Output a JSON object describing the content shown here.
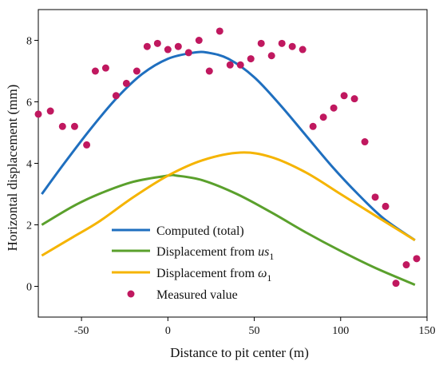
{
  "chart_data": {
    "type": "line",
    "xlabel": "Distance to pit center (m)",
    "ylabel": "Horizontal displacement (mm)",
    "xlim": [
      -75,
      150
    ],
    "ylim": [
      -1,
      9
    ],
    "xticks": [
      -50,
      0,
      50,
      100,
      150
    ],
    "yticks": [
      0,
      2,
      4,
      6,
      8
    ],
    "legend_position": "lower-left",
    "series": [
      {
        "name": "Computed (total)",
        "type": "line",
        "color": "#1f6fbf",
        "x": [
          -73,
          -60,
          -45,
          -30,
          -15,
          0,
          15,
          23,
          35,
          50,
          65,
          80,
          95,
          110,
          125,
          143
        ],
        "y": [
          3.0,
          4.0,
          5.1,
          6.1,
          6.9,
          7.4,
          7.6,
          7.6,
          7.4,
          6.8,
          5.9,
          4.9,
          3.9,
          3.0,
          2.2,
          1.5
        ]
      },
      {
        "name_main": "Displacement from ",
        "name_italic": "us",
        "name_sub": "1",
        "type": "line",
        "color": "#5aa02c",
        "x": [
          -73,
          -55,
          -40,
          -20,
          0,
          5,
          20,
          40,
          60,
          80,
          100,
          120,
          143
        ],
        "y": [
          2.0,
          2.6,
          3.0,
          3.4,
          3.6,
          3.6,
          3.45,
          3.0,
          2.4,
          1.75,
          1.15,
          0.6,
          0.05
        ]
      },
      {
        "name_main": "Displacement from  ",
        "name_italic": "ω",
        "name_sub": "1",
        "type": "line",
        "color": "#f5b400",
        "x": [
          -73,
          -55,
          -40,
          -20,
          0,
          20,
          42,
          60,
          80,
          100,
          120,
          143
        ],
        "y": [
          1.0,
          1.6,
          2.1,
          2.9,
          3.6,
          4.1,
          4.35,
          4.2,
          3.7,
          3.0,
          2.3,
          1.5
        ]
      },
      {
        "name": "Measured value",
        "type": "scatter",
        "color": "#c0185f",
        "x": [
          -75,
          -68,
          -61,
          -54,
          -47,
          -42,
          -36,
          -30,
          -24,
          -18,
          -12,
          -6,
          0,
          6,
          12,
          18,
          24,
          30,
          36,
          42,
          48,
          54,
          60,
          66,
          72,
          78,
          84,
          90,
          96,
          102,
          108,
          114,
          120,
          126,
          132,
          138,
          144
        ],
        "y": [
          5.6,
          5.7,
          5.2,
          5.2,
          4.6,
          7.0,
          7.1,
          6.2,
          6.6,
          7.0,
          7.8,
          7.9,
          7.7,
          7.8,
          7.6,
          8.0,
          7.0,
          8.3,
          7.2,
          7.2,
          7.4,
          7.9,
          7.5,
          7.9,
          7.8,
          7.7,
          5.2,
          5.5,
          5.8,
          6.2,
          6.1,
          4.7,
          2.9,
          2.6,
          0.1,
          0.7,
          0.9
        ]
      }
    ]
  }
}
